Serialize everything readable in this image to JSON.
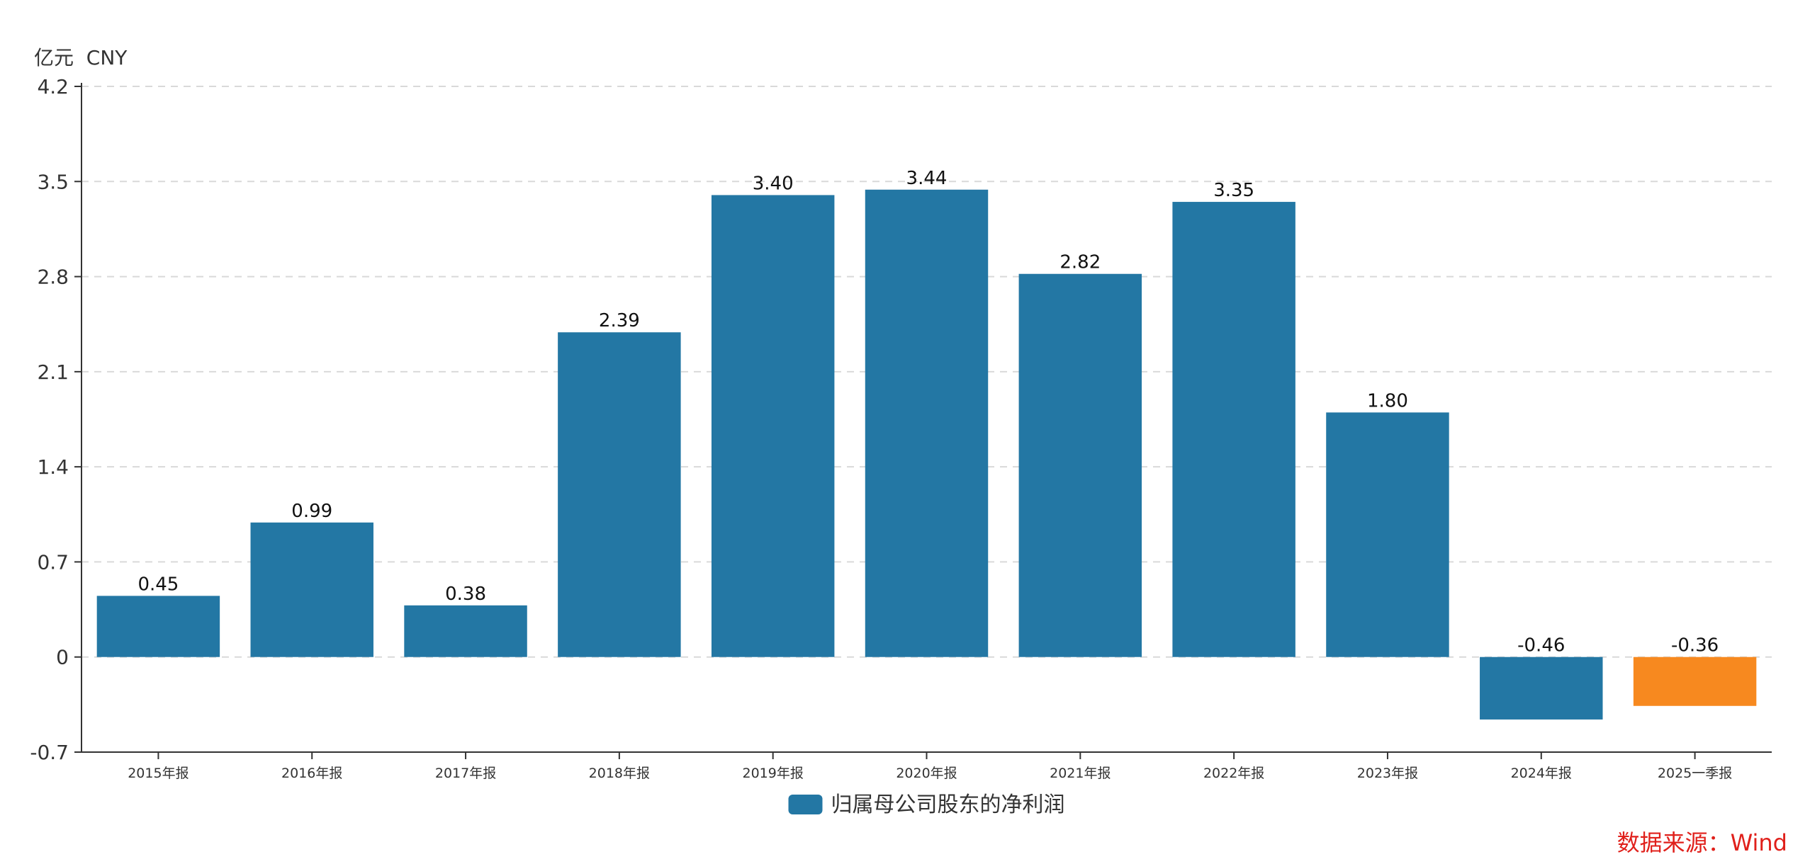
{
  "unit_label": "亿元  CNY",
  "source": "数据来源：Wind",
  "colors": {
    "bar": "#2377a4",
    "highlight": "#f7891f",
    "grid": "#d9d9d9",
    "axis": "#333333"
  },
  "chart_data": {
    "type": "bar",
    "categories": [
      "2015年报",
      "2016年报",
      "2017年报",
      "2018年报",
      "2019年报",
      "2020年报",
      "2021年报",
      "2022年报",
      "2023年报",
      "2024年报",
      "2025一季报"
    ],
    "series": [
      {
        "name": "归属母公司股东的净利润",
        "values": [
          0.45,
          0.99,
          0.38,
          2.39,
          3.4,
          3.44,
          2.82,
          3.35,
          1.8,
          -0.46,
          -0.36
        ],
        "value_labels": [
          "0.45",
          "0.99",
          "0.38",
          "2.39",
          "3.40",
          "3.44",
          "2.82",
          "3.35",
          "1.80",
          "-0.46",
          "-0.36"
        ]
      }
    ],
    "highlight_index": 10,
    "yticks": [
      "4.2",
      "3.5",
      "2.8",
      "2.1",
      "1.4",
      "0.7",
      "0",
      "-0.7"
    ],
    "ylim": [
      -0.7,
      4.2
    ],
    "grid": true,
    "legend_position": "bottom-center"
  }
}
